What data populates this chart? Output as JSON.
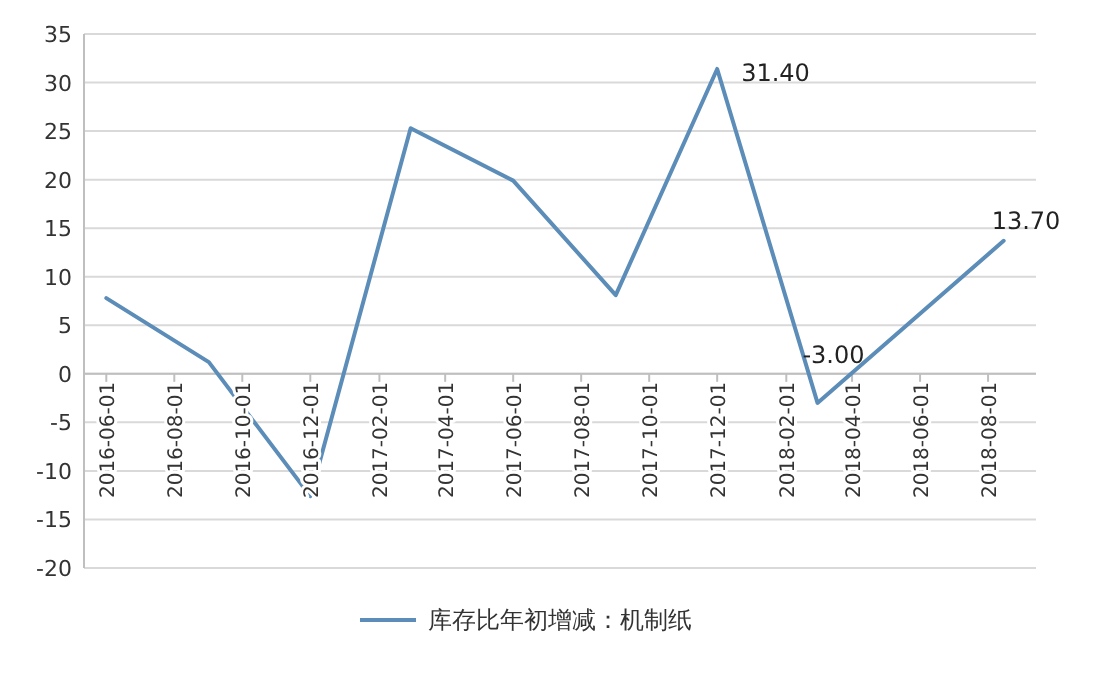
{
  "chart_data": {
    "type": "line",
    "x": [
      "2016-06-01",
      "2016-09-01",
      "2016-12-01",
      "2017-03-01",
      "2017-06-01",
      "2017-09-01",
      "2017-12-01",
      "2018-03-01",
      "2018-08-15"
    ],
    "series": [
      {
        "name": "库存比年初增减：机制纸",
        "color": "#5b8db8",
        "values": [
          7.8,
          1.2,
          -12.6,
          25.3,
          19.9,
          8.1,
          31.4,
          -3.0,
          13.7
        ]
      }
    ],
    "xlim": [
      "2016-05-12",
      "2018-09-13"
    ],
    "xticks": [
      "2016-06-01",
      "2016-08-01",
      "2016-10-01",
      "2016-12-01",
      "2017-02-01",
      "2017-04-01",
      "2017-06-01",
      "2017-08-01",
      "2017-10-01",
      "2017-12-01",
      "2018-02-01",
      "2018-04-01",
      "2018-06-01",
      "2018-08-01"
    ],
    "ylim": [
      -20,
      35
    ],
    "yticks": [
      -20,
      -15,
      -10,
      -5,
      0,
      5,
      10,
      15,
      20,
      25,
      30,
      35
    ],
    "grid": "y",
    "legend": "bottom",
    "marker": "none",
    "line_style": "solid",
    "annotations": [
      {
        "text": "31.40",
        "x": "2017-12-01",
        "y": 31.4
      },
      {
        "text": "-3.00",
        "x": "2018-03-01",
        "y": -3.0
      },
      {
        "text": "13.70",
        "x": "2018-08-15",
        "y": 13.7
      }
    ]
  }
}
